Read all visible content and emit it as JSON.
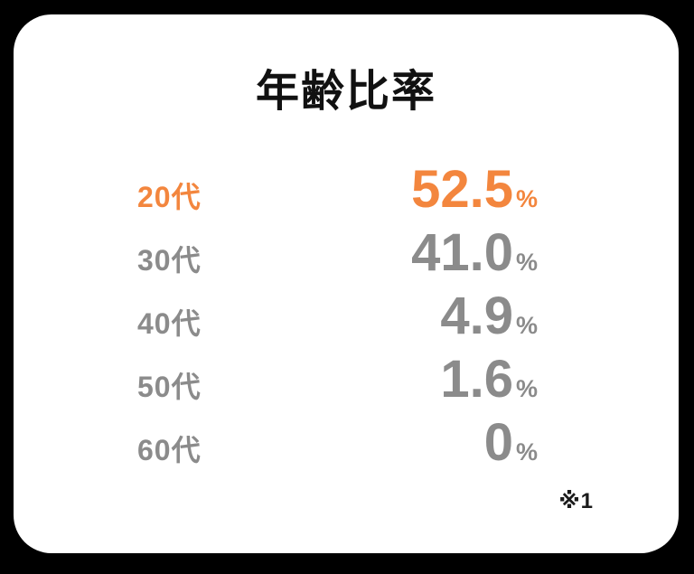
{
  "card": {
    "title": "年齢比率",
    "rows": [
      {
        "label": "20代",
        "value": "52.5",
        "unit": "%",
        "highlighted": true
      },
      {
        "label": "30代",
        "value": "41.0",
        "unit": "%",
        "highlighted": false
      },
      {
        "label": "40代",
        "value": "4.9",
        "unit": "%",
        "highlighted": false
      },
      {
        "label": "50代",
        "value": "1.6",
        "unit": "%",
        "highlighted": false
      },
      {
        "label": "60代",
        "value": "0",
        "unit": "%",
        "highlighted": false
      }
    ],
    "footnote": "※1"
  },
  "colors": {
    "background": "#000000",
    "card": "#ffffff",
    "title": "#111111",
    "muted_gray": "#8b8b8b",
    "highlight_orange": "#F3863E"
  },
  "chart_data": {
    "type": "table",
    "title": "年齢比率",
    "categories": [
      "20代",
      "30代",
      "40代",
      "50代",
      "60代"
    ],
    "values": [
      52.5,
      41.0,
      4.9,
      1.6,
      0
    ],
    "unit": "%",
    "annotations": [
      "※1"
    ],
    "highlight": {
      "category": "20代",
      "value": 52.5,
      "color": "#F3863E"
    },
    "legend_position": "none",
    "grid": false
  }
}
